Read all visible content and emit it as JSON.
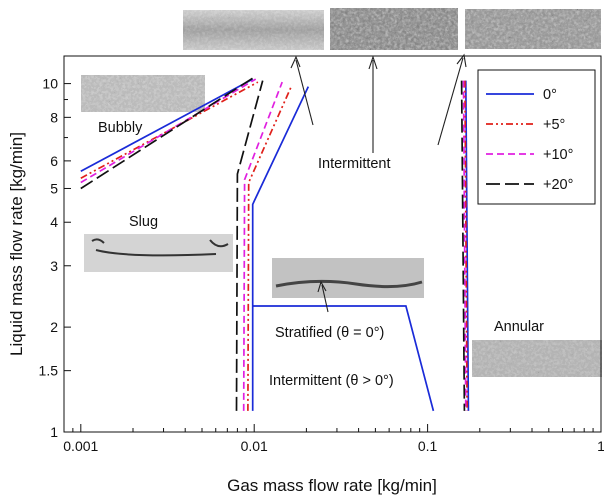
{
  "chart_data": {
    "type": "line",
    "xlabel": "Gas mass flow rate [kg/min]",
    "ylabel": "Liquid mass flow rate [kg/min]",
    "xscale": "log",
    "yscale": "log",
    "xlim": [
      0.0008,
      1
    ],
    "ylim": [
      1,
      12
    ],
    "x_ticks": [
      {
        "value": 0.001,
        "label": "0.001"
      },
      {
        "value": 0.01,
        "label": "0.01"
      },
      {
        "value": 0.1,
        "label": "0.1"
      },
      {
        "value": 1,
        "label": "1"
      }
    ],
    "y_ticks": [
      {
        "value": 1,
        "label": "1"
      },
      {
        "value": 1.5,
        "label": "1.5"
      },
      {
        "value": 2,
        "label": "2"
      },
      {
        "value": 3,
        "label": "3"
      },
      {
        "value": 4,
        "label": "4"
      },
      {
        "value": 5,
        "label": "5"
      },
      {
        "value": 6,
        "label": "6"
      },
      {
        "value": 8,
        "label": "8"
      },
      {
        "value": 10,
        "label": "10"
      }
    ],
    "grid": false,
    "legend_position": "top-right",
    "series": [
      {
        "name": "0°",
        "color": "#1a2bd8",
        "dash": "solid",
        "lines": [
          [
            [
              0.001,
              5.6
            ],
            [
              0.0098,
              10.3
            ]
          ],
          [
            [
              0.0098,
              1.15
            ],
            [
              0.0098,
              4.5
            ],
            [
              0.01,
              4.6
            ],
            [
              0.0205,
              9.8
            ]
          ],
          [
            [
              0.0098,
              2.3
            ],
            [
              0.075,
              2.3
            ],
            [
              0.108,
              1.15
            ]
          ],
          [
            [
              0.166,
              10.2
            ],
            [
              0.172,
              1.15
            ]
          ]
        ]
      },
      {
        "name": "+5°",
        "color": "#e0201a",
        "dash": "dashdot",
        "lines": [
          [
            [
              0.001,
              5.35
            ],
            [
              0.0105,
              10.1
            ]
          ],
          [
            [
              0.0092,
              1.15
            ],
            [
              0.0093,
              5.2
            ],
            [
              0.0165,
              9.9
            ]
          ],
          [
            [
              0.164,
              10.2
            ],
            [
              0.169,
              1.15
            ]
          ]
        ]
      },
      {
        "name": "+10°",
        "color": "#e020e0",
        "dash": "dashed",
        "lines": [
          [
            [
              0.001,
              5.2
            ],
            [
              0.0102,
              10.3
            ]
          ],
          [
            [
              0.0087,
              1.15
            ],
            [
              0.0088,
              5.3
            ],
            [
              0.0145,
              10.1
            ]
          ],
          [
            [
              0.161,
              10.2
            ],
            [
              0.166,
              1.15
            ]
          ]
        ]
      },
      {
        "name": "+20°",
        "color": "#111111",
        "dash": "longdash",
        "lines": [
          [
            [
              0.001,
              5.0
            ],
            [
              0.0099,
              10.4
            ]
          ],
          [
            [
              0.0079,
              1.15
            ],
            [
              0.008,
              5.5
            ],
            [
              0.0112,
              10.2
            ]
          ],
          [
            [
              0.157,
              10.2
            ],
            [
              0.163,
              1.15
            ]
          ]
        ]
      }
    ],
    "annotations": [
      {
        "key": "bubbly",
        "text": "Bubbly"
      },
      {
        "key": "slug",
        "text": "Slug"
      },
      {
        "key": "intermittent",
        "text": "Intermittent"
      },
      {
        "key": "stratified",
        "text": "Stratified (θ = 0°)"
      },
      {
        "key": "intermittent_pos",
        "text": "Intermittent (θ > 0°)"
      },
      {
        "key": "annular",
        "text": "Annular"
      }
    ]
  }
}
